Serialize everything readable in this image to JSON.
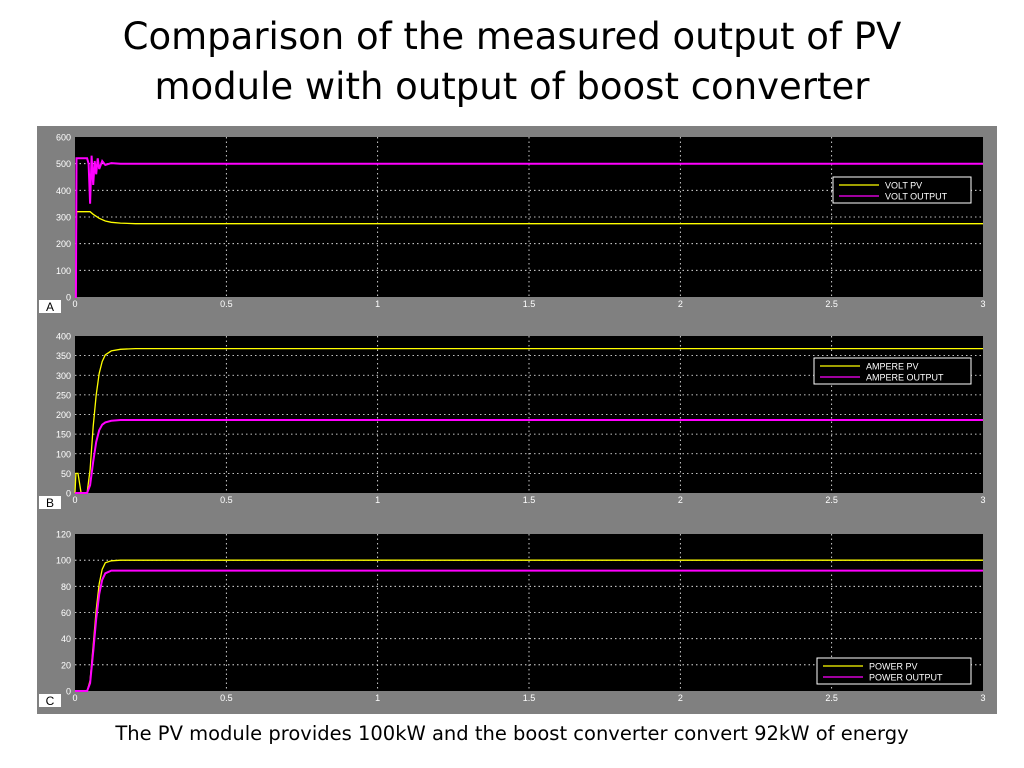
{
  "slide": {
    "title_line1": "Comparison of the measured output of PV",
    "title_line2": "module with output of boost converter",
    "caption": "The PV module provides 100kW and the boost converter convert 92kW of energy"
  },
  "colors": {
    "frame": "#808080",
    "plot_bg": "#000000",
    "grid": "#ffffff",
    "tick_text": "#ffffff",
    "pv_series": "#ffff00",
    "output_series": "#ff00ff",
    "panel_label_bg": "#ffffff"
  },
  "chart_data": [
    {
      "type": "line",
      "panel_label": "A",
      "xlim": [
        0,
        3
      ],
      "ylim": [
        0,
        600
      ],
      "xticks": [
        0,
        0.5,
        1,
        1.5,
        2,
        2.5,
        3
      ],
      "xtick_labels": [
        "0",
        "0.5",
        "1",
        "1.5",
        "2",
        "2.5",
        "3"
      ],
      "yticks": [
        0,
        100,
        200,
        300,
        400,
        500,
        600
      ],
      "ytick_labels": [
        "0",
        "100",
        "200",
        "300",
        "400",
        "500",
        "600"
      ],
      "grid": true,
      "legend_position": "right",
      "series": [
        {
          "name": "VOLT PV",
          "color": "#ffff00",
          "x": [
            0,
            0.003,
            0.005,
            0.05,
            0.06,
            0.08,
            0.1,
            0.12,
            0.15,
            0.2,
            3
          ],
          "y": [
            0,
            0,
            320,
            320,
            310,
            295,
            285,
            280,
            277,
            275,
            275
          ]
        },
        {
          "name": "VOLT OUTPUT",
          "color": "#ff00ff",
          "x": [
            0,
            0.003,
            0.005,
            0.04,
            0.045,
            0.05,
            0.055,
            0.06,
            0.065,
            0.07,
            0.075,
            0.08,
            0.09,
            0.1,
            0.12,
            0.15,
            3
          ],
          "y": [
            0,
            0,
            520,
            520,
            500,
            350,
            530,
            420,
            510,
            460,
            520,
            480,
            510,
            495,
            502,
            500,
            500
          ]
        }
      ]
    },
    {
      "type": "line",
      "panel_label": "B",
      "xlim": [
        0,
        3
      ],
      "ylim": [
        0,
        400
      ],
      "xticks": [
        0,
        0.5,
        1,
        1.5,
        2,
        2.5,
        3
      ],
      "xtick_labels": [
        "0",
        "0.5",
        "1",
        "1.5",
        "2",
        "2.5",
        "3"
      ],
      "yticks": [
        0,
        50,
        100,
        150,
        200,
        250,
        300,
        350,
        400
      ],
      "ytick_labels": [
        "0",
        "50",
        "100",
        "150",
        "200",
        "250",
        "300",
        "350",
        "400"
      ],
      "grid": true,
      "legend_position": "right",
      "series": [
        {
          "name": "AMPERE PV",
          "color": "#ffff00",
          "x": [
            0,
            0.003,
            0.01,
            0.02,
            0.04,
            0.05,
            0.06,
            0.07,
            0.08,
            0.09,
            0.1,
            0.12,
            0.15,
            0.2,
            3
          ],
          "y": [
            0,
            50,
            50,
            0,
            0,
            60,
            170,
            250,
            305,
            335,
            352,
            362,
            366,
            368,
            368
          ]
        },
        {
          "name": "AMPERE OUTPUT",
          "color": "#ff00ff",
          "x": [
            0,
            0.04,
            0.05,
            0.06,
            0.07,
            0.08,
            0.09,
            0.1,
            0.12,
            0.15,
            0.2,
            3
          ],
          "y": [
            0,
            0,
            20,
            80,
            130,
            160,
            174,
            180,
            184,
            186,
            186,
            186
          ]
        }
      ]
    },
    {
      "type": "line",
      "panel_label": "C",
      "xlim": [
        0,
        3
      ],
      "ylim": [
        0,
        120
      ],
      "xticks": [
        0,
        0.5,
        1,
        1.5,
        2,
        2.5,
        3
      ],
      "xtick_labels": [
        "0",
        "0.5",
        "1",
        "1.5",
        "2",
        "2.5",
        "3"
      ],
      "yticks": [
        0,
        20,
        40,
        60,
        80,
        100,
        120
      ],
      "ytick_labels": [
        "0",
        "20",
        "40",
        "60",
        "80",
        "100",
        "120"
      ],
      "grid": true,
      "legend_position": "bottom-right",
      "series": [
        {
          "name": "POWER PV",
          "color": "#ffff00",
          "x": [
            0,
            0.04,
            0.05,
            0.06,
            0.07,
            0.08,
            0.09,
            0.1,
            0.12,
            0.15,
            0.2,
            3
          ],
          "y": [
            0,
            0,
            8,
            35,
            62,
            82,
            93,
            98,
            99.5,
            100,
            100,
            100
          ]
        },
        {
          "name": "POWER OUTPUT",
          "color": "#ff00ff",
          "x": [
            0,
            0.04,
            0.05,
            0.06,
            0.07,
            0.08,
            0.09,
            0.1,
            0.12,
            0.15,
            0.2,
            3
          ],
          "y": [
            0,
            0,
            6,
            30,
            55,
            74,
            85,
            90,
            92,
            92,
            92,
            92
          ]
        }
      ]
    }
  ]
}
